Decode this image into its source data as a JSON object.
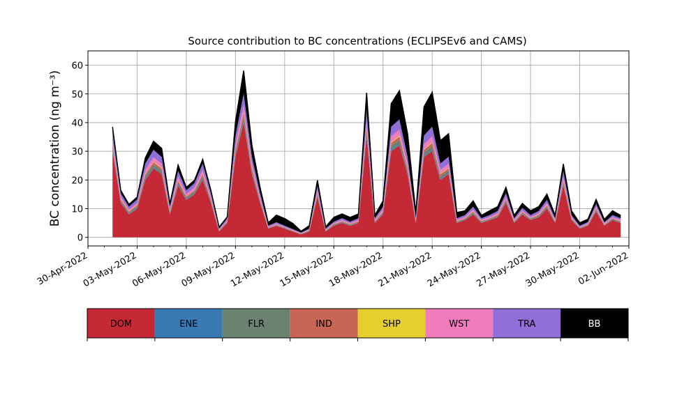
{
  "chart_data": {
    "type": "area",
    "stacked": true,
    "title": "Source contribution to BC concentrations (ECLIPSEv6 and CAMS)",
    "ylabel": "BC concentration (ng m⁻³)",
    "xlabel": "",
    "ylim": [
      -3,
      65
    ],
    "xlim": [
      "2022-04-30",
      "2022-06-02"
    ],
    "yticks": [
      0,
      10,
      20,
      30,
      40,
      50,
      60
    ],
    "xtick_labels": [
      "30-Apr-2022",
      "03-May-2022",
      "06-May-2022",
      "09-May-2022",
      "12-May-2022",
      "15-May-2022",
      "18-May-2022",
      "21-May-2022",
      "24-May-2022",
      "27-May-2022",
      "30-May-2022",
      "02-Jun-2022"
    ],
    "grid": true,
    "legend_position": "below",
    "x": [
      "2022-05-01T12:00",
      "2022-05-02T00:00",
      "2022-05-02T12:00",
      "2022-05-03T00:00",
      "2022-05-03T12:00",
      "2022-05-04T00:00",
      "2022-05-04T12:00",
      "2022-05-05T00:00",
      "2022-05-05T12:00",
      "2022-05-06T00:00",
      "2022-05-06T12:00",
      "2022-05-07T00:00",
      "2022-05-07T12:00",
      "2022-05-08T00:00",
      "2022-05-08T12:00",
      "2022-05-09T00:00",
      "2022-05-09T12:00",
      "2022-05-10T00:00",
      "2022-05-10T12:00",
      "2022-05-11T00:00",
      "2022-05-11T12:00",
      "2022-05-12T00:00",
      "2022-05-12T12:00",
      "2022-05-13T00:00",
      "2022-05-13T12:00",
      "2022-05-14T00:00",
      "2022-05-14T12:00",
      "2022-05-15T00:00",
      "2022-05-15T12:00",
      "2022-05-16T00:00",
      "2022-05-16T12:00",
      "2022-05-17T00:00",
      "2022-05-17T12:00",
      "2022-05-18T00:00",
      "2022-05-18T12:00",
      "2022-05-19T00:00",
      "2022-05-19T12:00",
      "2022-05-20T00:00",
      "2022-05-20T12:00",
      "2022-05-21T00:00",
      "2022-05-21T12:00",
      "2022-05-22T00:00",
      "2022-05-22T12:00",
      "2022-05-23T00:00",
      "2022-05-23T12:00",
      "2022-05-24T00:00",
      "2022-05-24T12:00",
      "2022-05-25T00:00",
      "2022-05-25T12:00",
      "2022-05-26T00:00",
      "2022-05-26T12:00",
      "2022-05-27T00:00",
      "2022-05-27T12:00",
      "2022-05-28T00:00",
      "2022-05-28T12:00",
      "2022-05-29T00:00",
      "2022-05-29T12:00",
      "2022-05-30T00:00",
      "2022-05-30T12:00",
      "2022-05-31T00:00",
      "2022-05-31T12:00",
      "2022-06-01T00:00",
      "2022-06-01T12:00"
    ],
    "series": [
      {
        "name": "DOM",
        "color": "#c62936",
        "values": [
          30,
          12,
          8,
          10,
          20,
          24,
          22,
          8,
          18,
          13,
          15,
          20,
          12,
          2,
          5,
          28,
          40,
          22,
          12,
          3,
          4,
          3,
          2,
          1,
          2,
          14,
          2,
          4,
          5,
          4,
          5,
          35,
          5,
          8,
          30,
          32,
          22,
          5,
          28,
          30,
          20,
          22,
          5,
          6,
          8,
          5,
          6,
          7,
          12,
          5,
          8,
          6,
          7,
          10,
          5,
          18,
          6,
          3,
          4,
          9,
          4,
          6,
          5
        ]
      },
      {
        "name": "ENE",
        "color": "#3a7ab4",
        "values": [
          0.3,
          0.2,
          0.2,
          0.2,
          0.3,
          0.3,
          0.3,
          0.2,
          0.3,
          0.2,
          0.2,
          0.3,
          0.2,
          0.1,
          0.1,
          0.3,
          0.4,
          0.3,
          0.2,
          0.1,
          0.1,
          0.1,
          0.1,
          0.1,
          0.1,
          0.2,
          0.1,
          0.1,
          0.1,
          0.1,
          0.1,
          0.4,
          0.1,
          0.2,
          0.4,
          0.4,
          0.3,
          0.1,
          0.3,
          0.4,
          0.3,
          0.3,
          0.1,
          0.1,
          0.2,
          0.1,
          0.1,
          0.1,
          0.2,
          0.1,
          0.1,
          0.1,
          0.1,
          0.2,
          0.1,
          0.2,
          0.1,
          0.1,
          0.1,
          0.2,
          0.1,
          0.1,
          0.1
        ]
      },
      {
        "name": "FLR",
        "color": "#6b8272",
        "values": [
          1.2,
          0.6,
          0.5,
          0.6,
          1,
          1.1,
          1,
          0.5,
          0.9,
          0.6,
          0.7,
          1,
          0.6,
          0.2,
          0.3,
          1.3,
          1.8,
          1.1,
          0.6,
          0.2,
          0.2,
          0.2,
          0.1,
          0.1,
          0.2,
          0.7,
          0.2,
          0.3,
          0.3,
          0.3,
          0.3,
          1.6,
          0.3,
          0.5,
          1.5,
          1.6,
          1.1,
          0.3,
          1.3,
          1.5,
          1,
          1.1,
          0.3,
          0.3,
          0.5,
          0.3,
          0.3,
          0.4,
          0.6,
          0.3,
          0.4,
          0.3,
          0.4,
          0.5,
          0.3,
          0.9,
          0.3,
          0.2,
          0.2,
          0.5,
          0.2,
          0.3,
          0.3
        ]
      },
      {
        "name": "IND",
        "color": "#c86556",
        "values": [
          0.8,
          0.4,
          0.3,
          0.4,
          0.7,
          0.8,
          0.7,
          0.3,
          0.6,
          0.4,
          0.5,
          0.7,
          0.4,
          0.1,
          0.2,
          0.9,
          1.2,
          0.8,
          0.4,
          0.1,
          0.1,
          0.1,
          0.1,
          0.1,
          0.1,
          0.5,
          0.1,
          0.2,
          0.2,
          0.2,
          0.2,
          1.1,
          0.2,
          0.3,
          1,
          1.1,
          0.7,
          0.2,
          0.9,
          1,
          0.7,
          0.7,
          0.2,
          0.2,
          0.3,
          0.2,
          0.2,
          0.3,
          0.4,
          0.2,
          0.3,
          0.2,
          0.3,
          0.4,
          0.2,
          0.6,
          0.2,
          0.1,
          0.2,
          0.3,
          0.2,
          0.2,
          0.2
        ]
      },
      {
        "name": "SHP",
        "color": "#e5cf2e",
        "values": [
          0.2,
          0.1,
          0.1,
          0.1,
          0.2,
          0.2,
          0.2,
          0.1,
          0.2,
          0.1,
          0.1,
          0.2,
          0.1,
          0.05,
          0.05,
          0.2,
          0.3,
          0.2,
          0.1,
          0.05,
          0.05,
          0.05,
          0.05,
          0.05,
          0.05,
          0.1,
          0.05,
          0.05,
          0.05,
          0.05,
          0.05,
          0.3,
          0.05,
          0.1,
          0.3,
          0.3,
          0.2,
          0.05,
          0.2,
          0.3,
          0.2,
          0.2,
          0.05,
          0.05,
          0.1,
          0.05,
          0.05,
          0.1,
          0.1,
          0.05,
          0.1,
          0.05,
          0.1,
          0.1,
          0.05,
          0.2,
          0.05,
          0.05,
          0.05,
          0.1,
          0.05,
          0.05,
          0.05
        ]
      },
      {
        "name": "WST",
        "color": "#f07cbb",
        "values": [
          1.5,
          0.8,
          0.6,
          0.7,
          1.3,
          1.5,
          1.4,
          0.6,
          1.2,
          0.8,
          0.9,
          1.3,
          0.8,
          0.2,
          0.4,
          1.7,
          2.4,
          1.4,
          0.8,
          0.2,
          0.3,
          0.2,
          0.2,
          0.1,
          0.2,
          0.9,
          0.2,
          0.3,
          0.4,
          0.3,
          0.4,
          2.2,
          0.4,
          0.6,
          2,
          2.1,
          1.4,
          0.4,
          1.8,
          2,
          1.3,
          1.4,
          0.4,
          0.4,
          0.6,
          0.4,
          0.4,
          0.5,
          0.8,
          0.4,
          0.5,
          0.4,
          0.5,
          0.7,
          0.4,
          1.2,
          0.4,
          0.2,
          0.3,
          0.6,
          0.3,
          0.4,
          0.4
        ]
      },
      {
        "name": "TRA",
        "color": "#926ed9",
        "values": [
          2.5,
          1.3,
          1,
          1.2,
          2.2,
          2.6,
          2.4,
          1,
          2,
          1.3,
          1.5,
          2.2,
          1.3,
          0.4,
          0.6,
          3,
          4,
          2.4,
          1.3,
          0.4,
          0.5,
          0.4,
          0.3,
          0.2,
          0.4,
          1.5,
          0.4,
          0.5,
          0.6,
          0.5,
          0.6,
          3.8,
          0.6,
          1,
          3.4,
          3.6,
          2.4,
          0.6,
          3,
          3.4,
          2.2,
          2.4,
          0.6,
          0.7,
          1,
          0.6,
          0.7,
          0.8,
          1.3,
          0.6,
          0.9,
          0.7,
          0.8,
          1.2,
          0.6,
          2,
          0.7,
          0.4,
          0.5,
          1,
          0.4,
          0.7,
          0.6
        ]
      },
      {
        "name": "BB",
        "color": "#000000",
        "values": [
          2,
          1,
          0.8,
          0.8,
          2,
          3,
          3,
          1,
          2,
          1,
          1,
          1.5,
          1,
          0.5,
          0.5,
          5,
          8,
          4,
          2,
          1,
          2.5,
          2.5,
          2,
          0.5,
          1,
          2,
          0.6,
          1.5,
          1.5,
          1.5,
          1.5,
          6,
          1,
          2,
          8,
          10,
          8,
          2,
          10,
          12,
          8,
          8,
          2,
          1.5,
          2,
          1,
          1.5,
          1.5,
          2,
          1,
          1.5,
          1.5,
          1.5,
          2,
          1,
          2.5,
          1.5,
          1,
          1,
          1.5,
          1,
          1.5,
          1
        ]
      }
    ]
  }
}
